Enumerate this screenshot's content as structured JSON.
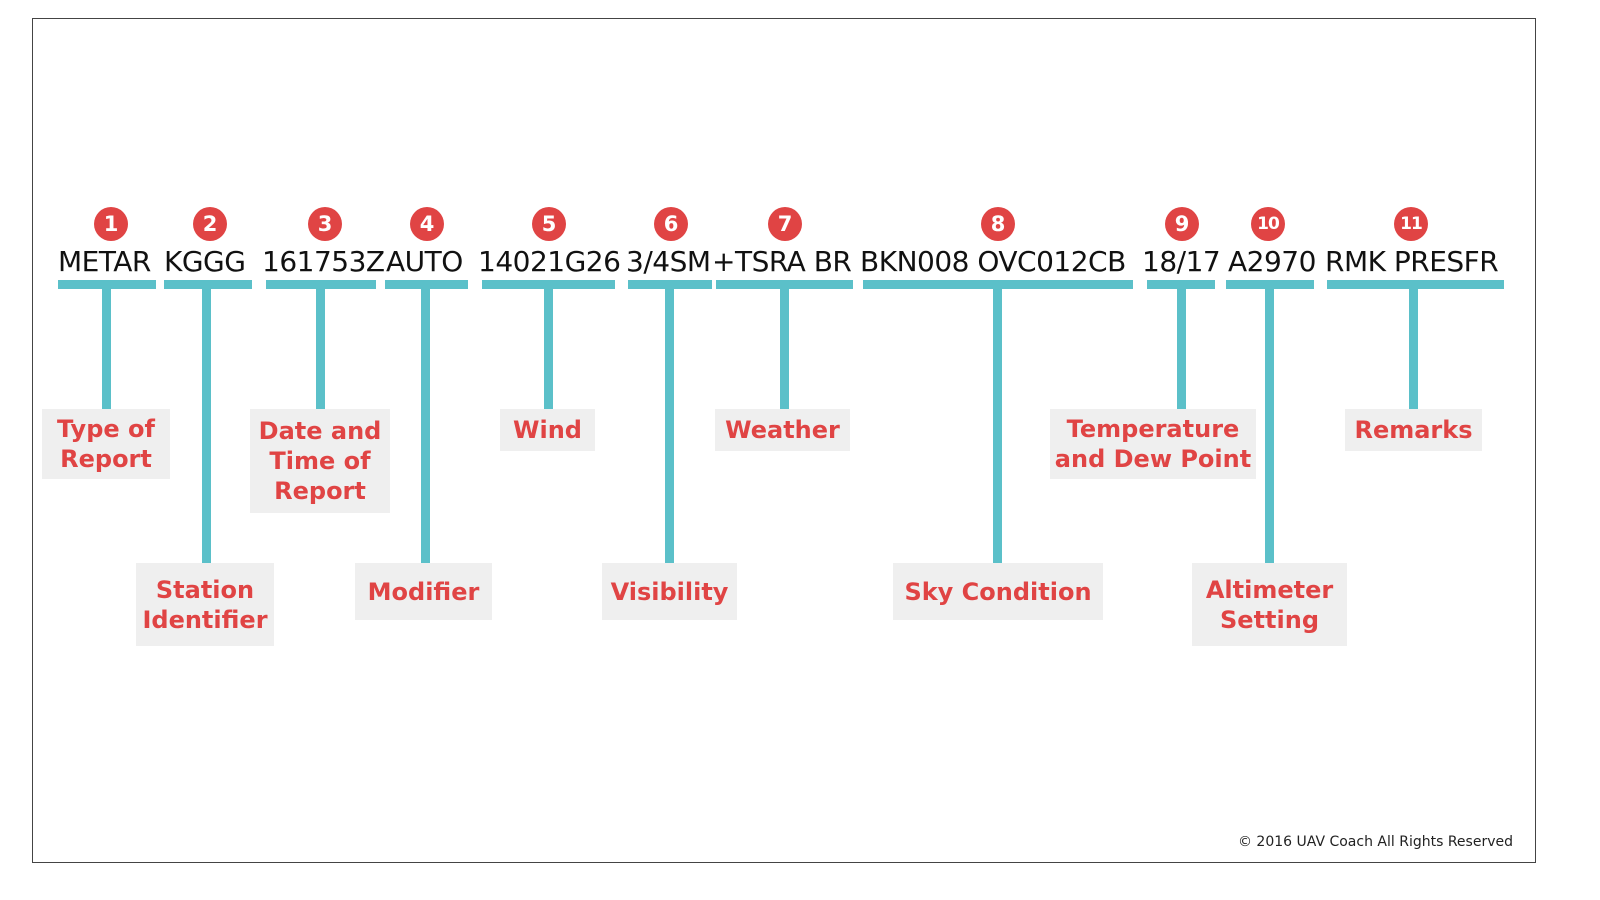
{
  "segments": [
    {
      "num": "1",
      "code": "METAR",
      "label": "Type of\nReport"
    },
    {
      "num": "2",
      "code": "KGGG",
      "label": "Station\nIdentifier"
    },
    {
      "num": "3",
      "code": "161753Z",
      "label": "Date and\nTime of\nReport"
    },
    {
      "num": "4",
      "code": "AUTO",
      "label": "Modifier"
    },
    {
      "num": "5",
      "code": "14021G26",
      "label": "Wind"
    },
    {
      "num": "6",
      "code": "3/4SM",
      "label": "Visibility"
    },
    {
      "num": "7",
      "code": "+TSRA BR",
      "label": "Weather"
    },
    {
      "num": "8",
      "code": "BKN008 OVC012CB",
      "label": "Sky Condition"
    },
    {
      "num": "9",
      "code": "18/17",
      "label": "Temperature\nand Dew Point"
    },
    {
      "num": "10",
      "code": "A2970",
      "label": "Altimeter\nSetting"
    },
    {
      "num": "11",
      "code": "RMK PRESFR",
      "label": "Remarks"
    }
  ],
  "copyright": "© 2016 UAV Coach All Rights Reserved",
  "colors": {
    "accent": "#e04444",
    "bar": "#5bc0c9",
    "label_bg": "#efefef"
  }
}
